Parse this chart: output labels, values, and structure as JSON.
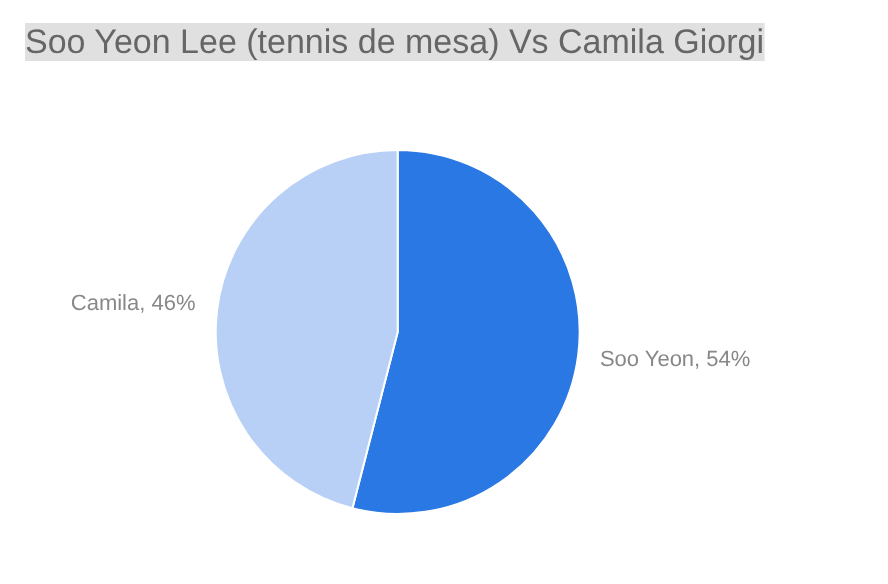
{
  "chart_data": {
    "type": "pie",
    "title": "Soo Yeon Lee (tennis de mesa) Vs Camila Giorgi",
    "categories": [
      "Soo Yeon",
      "Camila"
    ],
    "values": [
      54,
      46
    ],
    "value_labels": [
      "54%",
      "46%"
    ],
    "colors": [
      "#2a78e4",
      "#b8d0f5"
    ],
    "legend": false
  }
}
